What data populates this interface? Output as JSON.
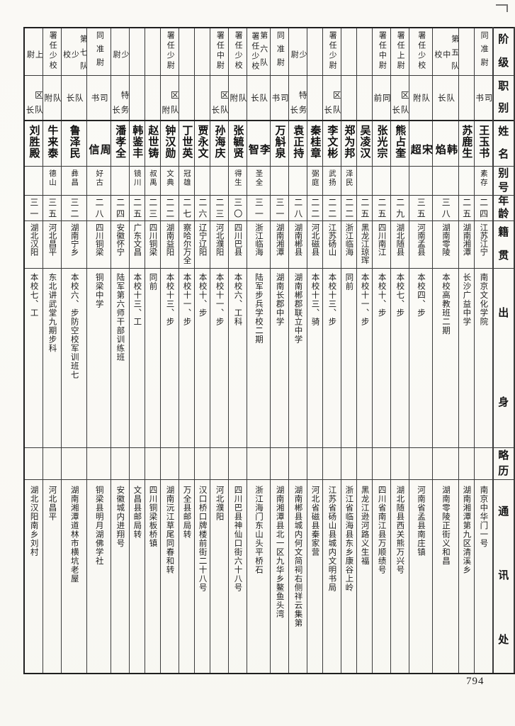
{
  "page": {
    "number": "794"
  },
  "table": {
    "row_headers": [
      {
        "key": "rank",
        "label": "阶级"
      },
      {
        "key": "duty",
        "label": "职别"
      },
      {
        "key": "name",
        "label": "姓名"
      },
      {
        "key": "alias",
        "label": "别号"
      },
      {
        "key": "age",
        "label": "年龄"
      },
      {
        "key": "native",
        "label": "籍贯"
      },
      {
        "key": "origin",
        "label": "出身"
      },
      {
        "key": "note",
        "label": "略历"
      },
      {
        "key": "addr",
        "label": "通讯处"
      }
    ],
    "persons": [
      {
        "name": "王玉书",
        "rank": [
          "同准尉"
        ],
        "duty": "司书",
        "alias": "素存",
        "age": "二四",
        "native": "江苏江宁",
        "origin": "南京文化学院",
        "note": "",
        "addr": "南京中华门一号"
      },
      {
        "name": "苏鹿生",
        "rank": [],
        "duty": "",
        "alias": "",
        "age": "二五",
        "native": "湖南湘潭",
        "origin": "长沙广益中学",
        "note": "",
        "addr": "湖南湘潭第九区清溪乡"
      },
      {
        "name": "韩焰",
        "rank": [
          "第五队",
          "中校"
        ],
        "duty": "队长",
        "alias": "",
        "age": "三八",
        "native": "湖南零陵",
        "origin": "本校高教班二期",
        "note": "",
        "addr": "湖南零陵正街义和昌"
      },
      {
        "name": "宋超",
        "rank": [
          "署任少校"
        ],
        "duty": "队附",
        "alias": "",
        "age": "三五",
        "native": "河南孟县",
        "origin": "本校四、步",
        "note": "",
        "addr": "河南省孟县南庄镇"
      },
      {
        "name": "熊占奎",
        "rank": [
          "署任上尉"
        ],
        "duty": "区队长",
        "alias": "",
        "age": "二九",
        "native": "湖北随县",
        "origin": "本校七、步",
        "note": "",
        "addr": "湖北随县西关熊万兴号"
      },
      {
        "name": "张光宗",
        "rank": [
          "署任中尉"
        ],
        "duty": "同前",
        "alias": "",
        "age": "二五",
        "native": "四川南江",
        "origin": "本校十、步",
        "note": "",
        "addr": "四川省南江县万顺绩号"
      },
      {
        "name": "吴凌汉",
        "rank": [],
        "duty": "",
        "alias": "",
        "age": "二五",
        "native": "黑龙江琼珲",
        "origin": "本校十一、步",
        "note": "",
        "addr": "黑龙江逊河路义生福"
      },
      {
        "name": "郑为邦",
        "rank": [],
        "duty": "",
        "alias": "泽民",
        "age": "二二",
        "native": "浙江临海",
        "origin": "同前",
        "note": "",
        "addr": "浙江省临海县东乡康谷上岭"
      },
      {
        "name": "李文彬",
        "rank": [
          "署任少尉"
        ],
        "duty": "区队长",
        "alias": "武扬",
        "age": "二二",
        "native": "江苏砀山",
        "origin": "本校十三、步",
        "note": "",
        "addr": "江苏省砀山县城内文明书局"
      },
      {
        "name": "秦桂章",
        "rank": [],
        "duty": "",
        "alias": "弼庭",
        "age": "二二",
        "native": "河北磁县",
        "origin": "本校十三、骑",
        "note": "",
        "addr": "河北省磁县秦家营"
      },
      {
        "name": "袁正持",
        "rank": [
          "少尉"
        ],
        "duty": "特务长",
        "alias": "",
        "age": "二八",
        "native": "湖南郴县",
        "origin": "湖南郴郡联立中学",
        "note": "",
        "addr": "湖南郴县城内何文简祠右侧祥云集第"
      },
      {
        "name": "万斛泉",
        "rank": [
          "同准尉"
        ],
        "duty": "司书",
        "alias": "",
        "age": "三一",
        "native": "湖南湘潭",
        "origin": "湖南长郡中学",
        "note": "",
        "addr": "湖南湘潭县北一区九华乡鳌鱼头湾"
      },
      {
        "name": "李智",
        "rank": [
          "第六队",
          "署任少校"
        ],
        "duty": "队长",
        "alias": "圣全",
        "age": "三一",
        "native": "浙江临海",
        "origin": "陆军步兵学校二期",
        "note": "",
        "addr": "浙江海门东山头平桥石"
      },
      {
        "name": "张毓贤",
        "rank": [
          "署任少校"
        ],
        "duty": "队附",
        "alias": "得生",
        "age": "三〇",
        "native": "四川巴县",
        "origin": "本校六、工科",
        "note": "",
        "addr": "四川巴县神仙口街六十八号"
      },
      {
        "name": "孙海庆",
        "rank": [
          "署任中尉"
        ],
        "duty": "区队长",
        "alias": "",
        "age": "二三",
        "native": "河北濮阳",
        "origin": "本校十一、步",
        "note": "",
        "addr": "河北濮阳"
      },
      {
        "name": "贾永文",
        "rank": [],
        "duty": "",
        "alias": "",
        "age": "二六",
        "native": "辽宁辽阳",
        "origin": "本校十、步",
        "note": "",
        "addr": "汉口桥口牌楼前街二十八号"
      },
      {
        "name": "丁世英",
        "rank": [],
        "duty": "",
        "alias": "冠雄",
        "age": "二七",
        "native": "察哈尔万全",
        "origin": "本校十一、步",
        "note": "",
        "addr": "万全县邮局转"
      },
      {
        "name": "钟汉勋",
        "rank": [
          "署任少尉"
        ],
        "duty": "区队附",
        "alias": "文典",
        "age": "二二",
        "native": "湖南益阳",
        "origin": "本校十三、步",
        "note": "",
        "addr": "湖南沅江草尾同春和转"
      },
      {
        "name": "赵世铸",
        "rank": [],
        "duty": "",
        "alias": "叔禹",
        "age": "二三",
        "native": "四川铜梁",
        "origin": "同前",
        "note": "",
        "addr": "四川铜梁板桥镇"
      },
      {
        "name": "韩鉴丰",
        "rank": [],
        "duty": "",
        "alias": "镜川",
        "age": "二五",
        "native": "广东文昌",
        "origin": "本校十三、工",
        "note": "",
        "addr": "文昌县邮局转"
      },
      {
        "name": "潘孝全",
        "rank": [
          "少尉"
        ],
        "duty": "特务长",
        "alias": "",
        "age": "二四",
        "native": "安徽怀宁",
        "origin": "陆军第六师干部训练班",
        "note": "",
        "addr": "安徽城内进翔号"
      },
      {
        "name": "周信",
        "rank": [
          "同准尉"
        ],
        "duty": "司书",
        "alias": "好古",
        "age": "二八",
        "native": "四川铜梁",
        "origin": "铜梁中学",
        "note": "",
        "addr": "铜梁县明月湖佛学社"
      },
      {
        "name": "鲁泽民",
        "rank": [
          "第七队",
          "少校"
        ],
        "duty": "队长",
        "alias": "彝昌",
        "age": "三二",
        "native": "湖南宁乡",
        "origin": "本校六、步防空校军训班七",
        "note": "",
        "addr": "湖南湘潭道林市横坑老屋"
      },
      {
        "name": "牛来泰",
        "rank": [
          "署任少校"
        ],
        "duty": "队附",
        "alias": "德山",
        "age": "三五",
        "native": "河北昌平",
        "origin": "东北讲武堂九期步科",
        "note": "",
        "addr": "河北昌平"
      },
      {
        "name": "刘胜殿",
        "rank": [
          "上尉"
        ],
        "duty": "区队长",
        "alias": "",
        "age": "三一",
        "native": "湖北汉阳",
        "origin": "本校七、工",
        "note": "",
        "addr": "湖北汉阳南乡刘村"
      }
    ]
  }
}
